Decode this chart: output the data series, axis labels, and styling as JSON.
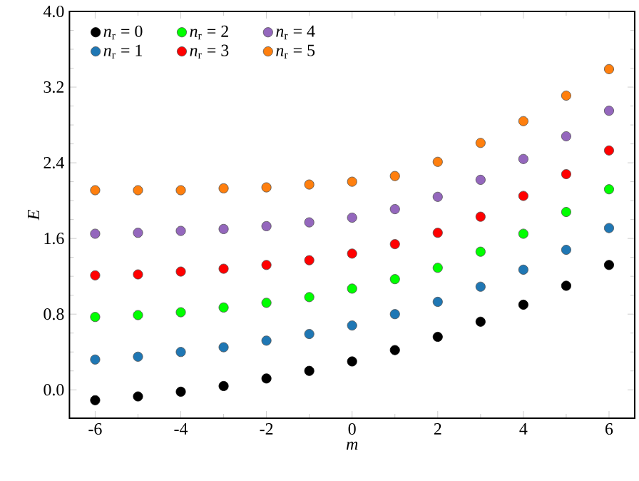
{
  "chart_data": {
    "type": "scatter",
    "xlabel": "*m*",
    "ylabel": "*E*",
    "x": [
      -6,
      -5,
      -4,
      -3,
      -2,
      -1,
      0,
      1,
      2,
      3,
      4,
      5,
      6
    ],
    "xlim": [
      -6.6,
      6.6
    ],
    "ylim": [
      -0.3,
      4.0
    ],
    "xticks": [
      -6,
      -4,
      -2,
      0,
      2,
      4,
      6
    ],
    "yticks": [
      {
        "value": 0,
        "label": "0.0"
      },
      0.8,
      1.6,
      2.4,
      3.2,
      {
        "value": 4,
        "label": "4.0"
      }
    ],
    "marker": "circle",
    "legend": "top left",
    "grid": false,
    "series": [
      {
        "name": "*n*$_{r}$ = 0",
        "color": "#000000",
        "values": [
          -0.11,
          -0.07,
          -0.02,
          0.04,
          0.12,
          0.2,
          0.3,
          0.42,
          0.56,
          0.72,
          0.9,
          1.1,
          1.32
        ]
      },
      {
        "name": "*n*$_{r}$ = 1",
        "color": "#1f77b4",
        "values": [
          0.32,
          0.35,
          0.4,
          0.45,
          0.52,
          0.59,
          0.68,
          0.8,
          0.93,
          1.09,
          1.27,
          1.48,
          1.71
        ]
      },
      {
        "name": "*n*$_{r}$ = 2",
        "color": "#00ff00",
        "values": [
          0.77,
          0.79,
          0.82,
          0.87,
          0.92,
          0.98,
          1.07,
          1.17,
          1.29,
          1.46,
          1.65,
          1.88,
          2.12
        ]
      },
      {
        "name": "*n*$_{r}$ = 3",
        "color": "#ff0000",
        "values": [
          1.21,
          1.22,
          1.25,
          1.28,
          1.32,
          1.37,
          1.44,
          1.54,
          1.66,
          1.83,
          2.05,
          2.28,
          2.53
        ]
      },
      {
        "name": "*n*$_{r}$ = 4",
        "color": "#9467bd",
        "values": [
          1.65,
          1.66,
          1.68,
          1.7,
          1.73,
          1.77,
          1.82,
          1.91,
          2.04,
          2.22,
          2.44,
          2.68,
          2.95
        ]
      },
      {
        "name": "*n*$_{r}$ = 5",
        "color": "#ff7f0e",
        "values": [
          2.11,
          2.11,
          2.11,
          2.13,
          2.14,
          2.17,
          2.2,
          2.26,
          2.41,
          2.61,
          2.84,
          3.11,
          3.39
        ]
      }
    ]
  }
}
